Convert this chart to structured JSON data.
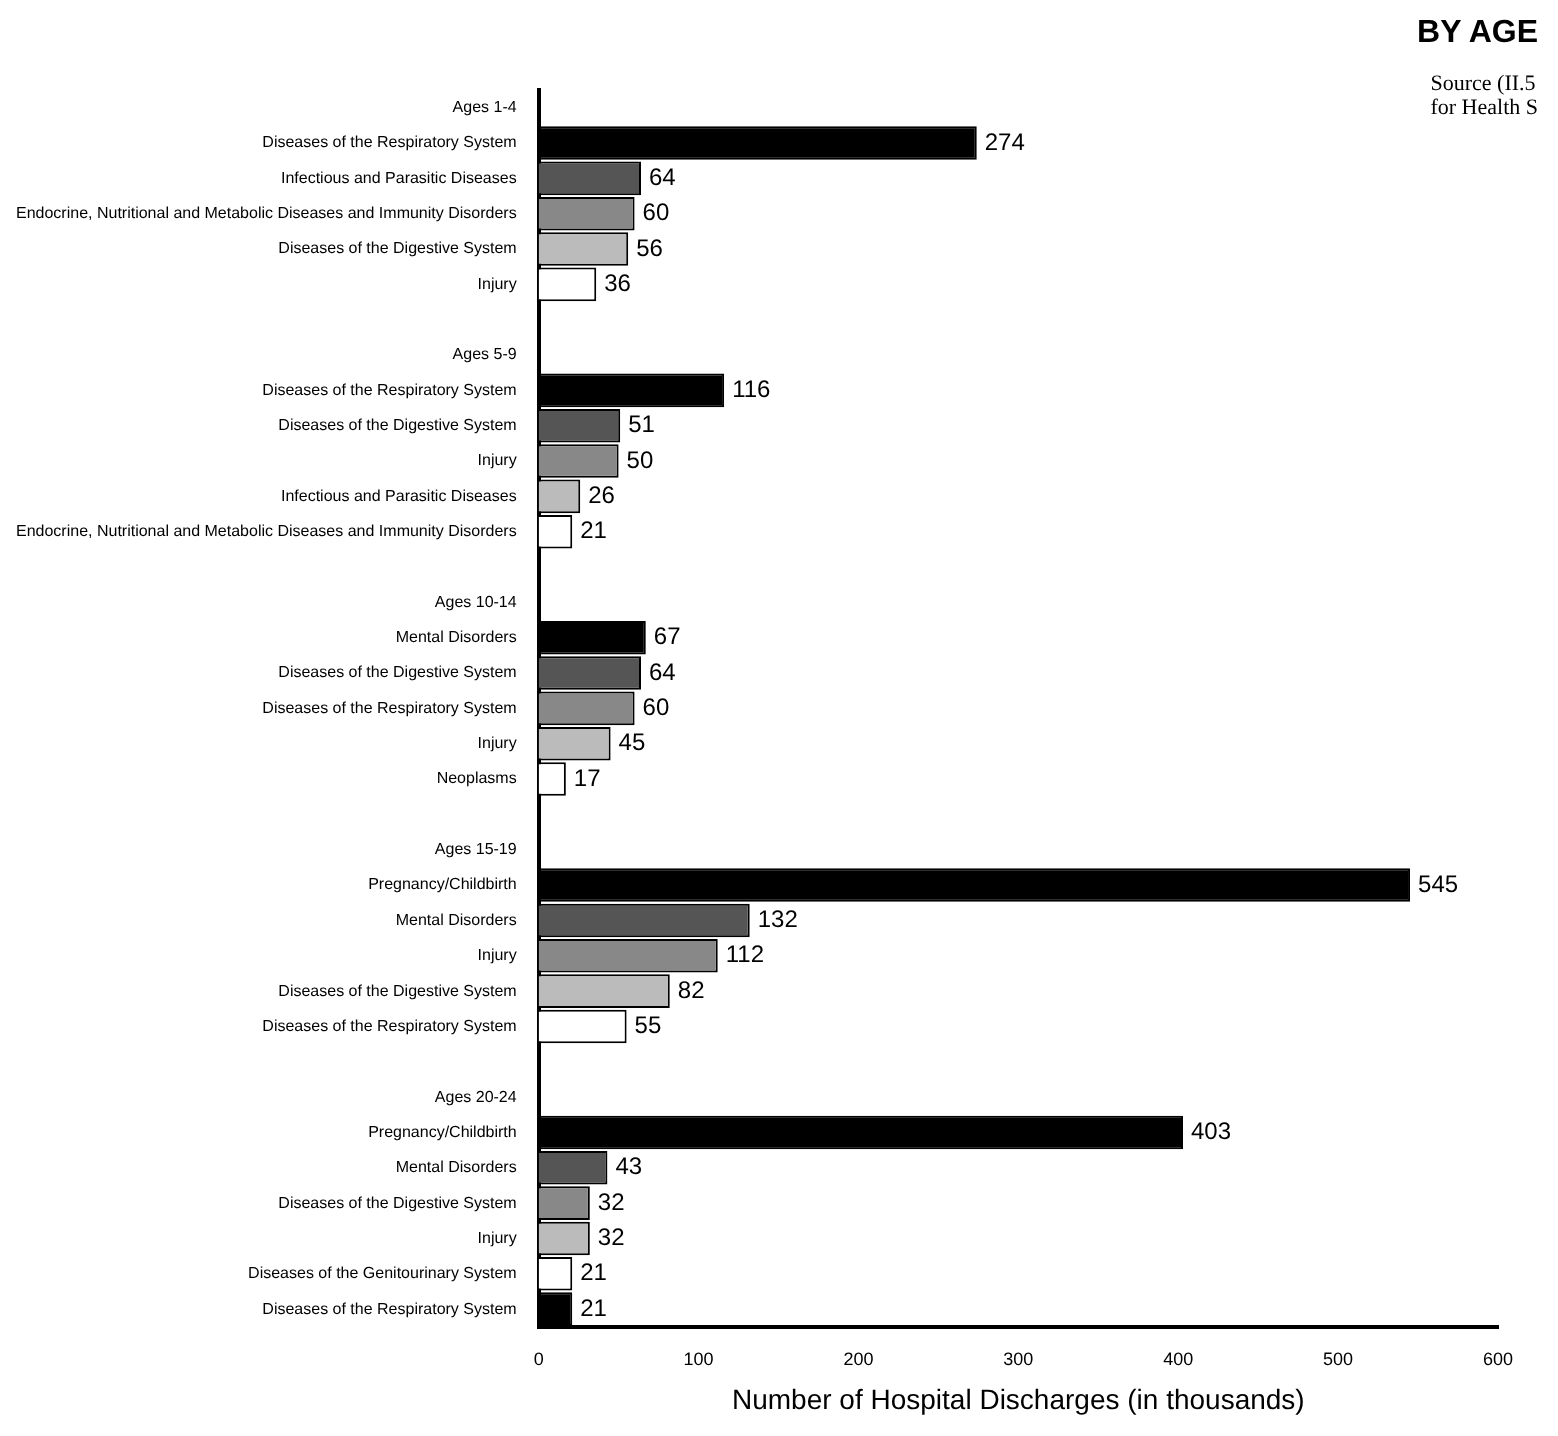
{
  "chart_data": {
    "type": "bar",
    "orientation": "horizontal",
    "title": "BY AGE",
    "xlabel": "Number of Hospital Discharges (in thousands)",
    "annotations": [
      "Source (II.5",
      "for Health S"
    ],
    "categories": [
      "Ages 1-4",
      "Diseases of the Respiratory System",
      "Infectious and Parasitic Diseases",
      "Endocrine, Nutritional and Metabolic Diseases and Immunity Disorders",
      "Diseases of the Digestive System",
      "Injury",
      null,
      "Ages 5-9",
      "Diseases of the Respiratory System",
      "Diseases of the Digestive System",
      "Injury",
      "Infectious and Parasitic Diseases",
      "Endocrine, Nutritional and Metabolic Diseases and Immunity Disorders",
      null,
      "Ages 10-14",
      "Mental Disorders",
      "Diseases of the Digestive System",
      "Diseases of the Respiratory System",
      "Injury",
      "Neoplasms",
      null,
      "Ages 15-19",
      "Pregnancy/Childbirth",
      "Mental Disorders",
      "Injury",
      "Diseases of the Digestive System",
      "Diseases of the Respiratory System",
      null,
      "Ages 20-24",
      "Pregnancy/Childbirth",
      "Mental Disorders",
      "Diseases of the Digestive System",
      "Injury",
      "Diseases of the Genitourinary System",
      "Diseases of the Respiratory System"
    ],
    "values": [
      null,
      274,
      64,
      60,
      56,
      36,
      null,
      null,
      116,
      51,
      50,
      26,
      21,
      null,
      null,
      67,
      64,
      60,
      45,
      17,
      null,
      null,
      545,
      132,
      112,
      82,
      55,
      null,
      null,
      403,
      43,
      32,
      32,
      21,
      21
    ],
    "colors": [
      null,
      "#000000",
      "#555555",
      "#888888",
      "#bbbbbb",
      "#ffffff",
      null,
      null,
      "#000000",
      "#555555",
      "#888888",
      "#bbbbbb",
      "#ffffff",
      null,
      null,
      "#000000",
      "#555555",
      "#888888",
      "#bbbbbb",
      "#ffffff",
      null,
      null,
      "#000000",
      "#555555",
      "#888888",
      "#bbbbbb",
      "#ffffff",
      null,
      null,
      "#000000",
      "#555555",
      "#888888",
      "#bbbbbb",
      "#ffffff",
      "#000000"
    ],
    "data_labels": true,
    "xlim": [
      0,
      600
    ],
    "xticks": [
      0,
      100,
      200,
      300,
      400,
      500,
      600
    ],
    "grid": false,
    "legend": false
  }
}
